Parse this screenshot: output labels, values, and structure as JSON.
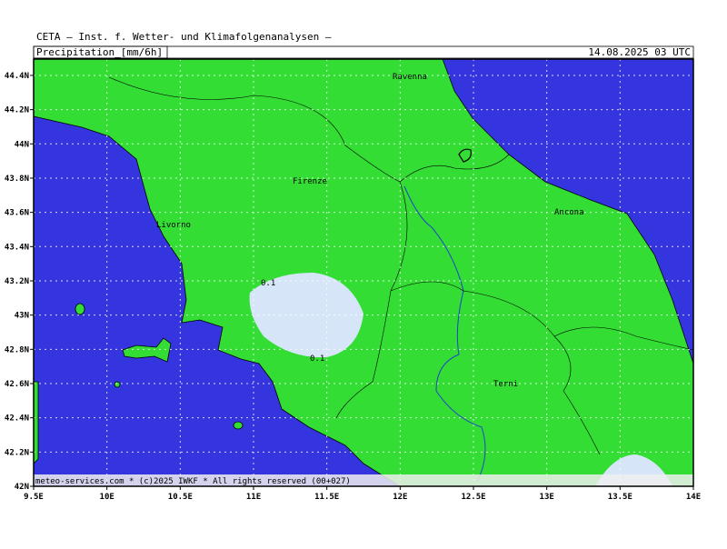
{
  "header": {
    "title": "CETA — Inst. f. Wetter- und Klimafolgenanalysen —",
    "field": "Precipitation_[mm/6h]",
    "valid_time": "14.08.2025 03 UTC"
  },
  "map": {
    "lat_labels": [
      "44.4N",
      "44.2N",
      "44N",
      "43.8N",
      "43.6N",
      "43.4N",
      "43.2N",
      "43N",
      "42.8N",
      "42.6N",
      "42.4N",
      "42.2N",
      "42N"
    ],
    "lon_labels": [
      "9.5E",
      "10E",
      "10.5E",
      "11E",
      "11.5E",
      "12E",
      "12.5E",
      "13E",
      "13.5E",
      "14E"
    ],
    "cities": [
      "Ravenna",
      "Firenze",
      "Livorno",
      "Ancona",
      "Terni"
    ],
    "contour_labels": [
      "0.1",
      "0.1"
    ],
    "footer": "meteo-services.com * (c)2025 IWKF * All rights reserved (00+027)"
  }
}
